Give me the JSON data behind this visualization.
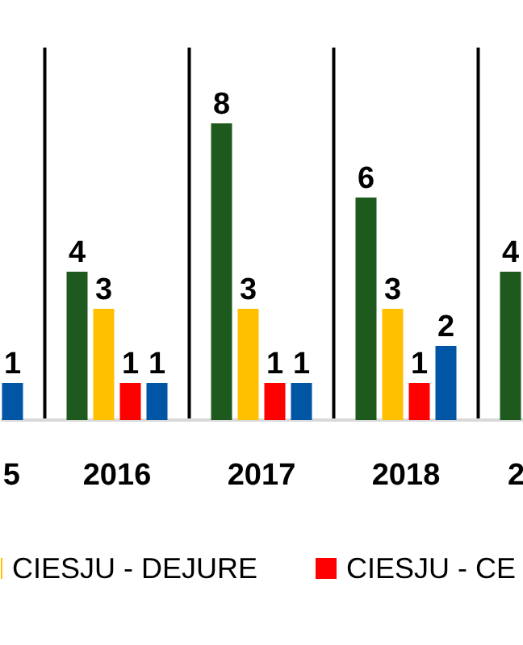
{
  "chart_data": {
    "type": "bar",
    "categories": [
      "5",
      "2016",
      "2017",
      "2018",
      "2"
    ],
    "series": [
      {
        "color": "#1e5a1e",
        "values": [
          null,
          4,
          8,
          6,
          4
        ]
      },
      {
        "name": "CIESJU - DEJURE",
        "color": "#ffc000",
        "values": [
          null,
          3,
          3,
          3,
          null
        ]
      },
      {
        "name": "CIESJU - CE",
        "color": "#ff0000",
        "values": [
          null,
          1,
          1,
          1,
          null
        ]
      },
      {
        "color": "#0055a5",
        "values": [
          1,
          1,
          1,
          2,
          null
        ]
      }
    ],
    "data_labels": true,
    "grid": "x",
    "legend": "bottom"
  }
}
